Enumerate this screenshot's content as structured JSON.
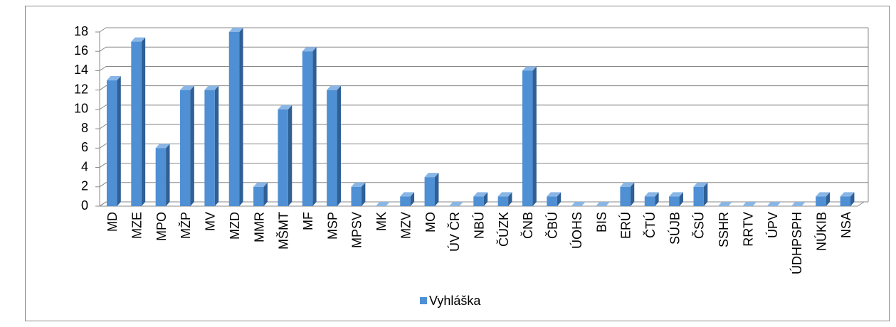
{
  "chart_data": {
    "type": "bar",
    "categories": [
      "MD",
      "MZE",
      "MPO",
      "MŽP",
      "MV",
      "MZD",
      "MMR",
      "MŠMT",
      "MF",
      "MSP",
      "MPSV",
      "MK",
      "MZV",
      "MO",
      "ÚV ČR",
      "NBÚ",
      "ČÚZK",
      "ČNB",
      "ČBÚ",
      "ÚOHS",
      "BIS",
      "ERÚ",
      "ČTÚ",
      "SÚJB",
      "ČSÚ",
      "SSHR",
      "RRTV",
      "ÚPV",
      "ÚDHPSPH",
      "NÚKIB",
      "NSA"
    ],
    "series": [
      {
        "name": "Vyhláška",
        "color": "#4f8fd4",
        "values": [
          13,
          17,
          6,
          12,
          12,
          18,
          2,
          10,
          16,
          12,
          2,
          0,
          1,
          3,
          0,
          1,
          1,
          14,
          1,
          0,
          0,
          2,
          1,
          1,
          2,
          0,
          0,
          0,
          0,
          1,
          1
        ]
      }
    ],
    "ylim": [
      0,
      18
    ],
    "yticks": [
      0,
      2,
      4,
      6,
      8,
      10,
      12,
      14,
      16,
      18
    ],
    "grid": true,
    "legend": "bottom"
  }
}
